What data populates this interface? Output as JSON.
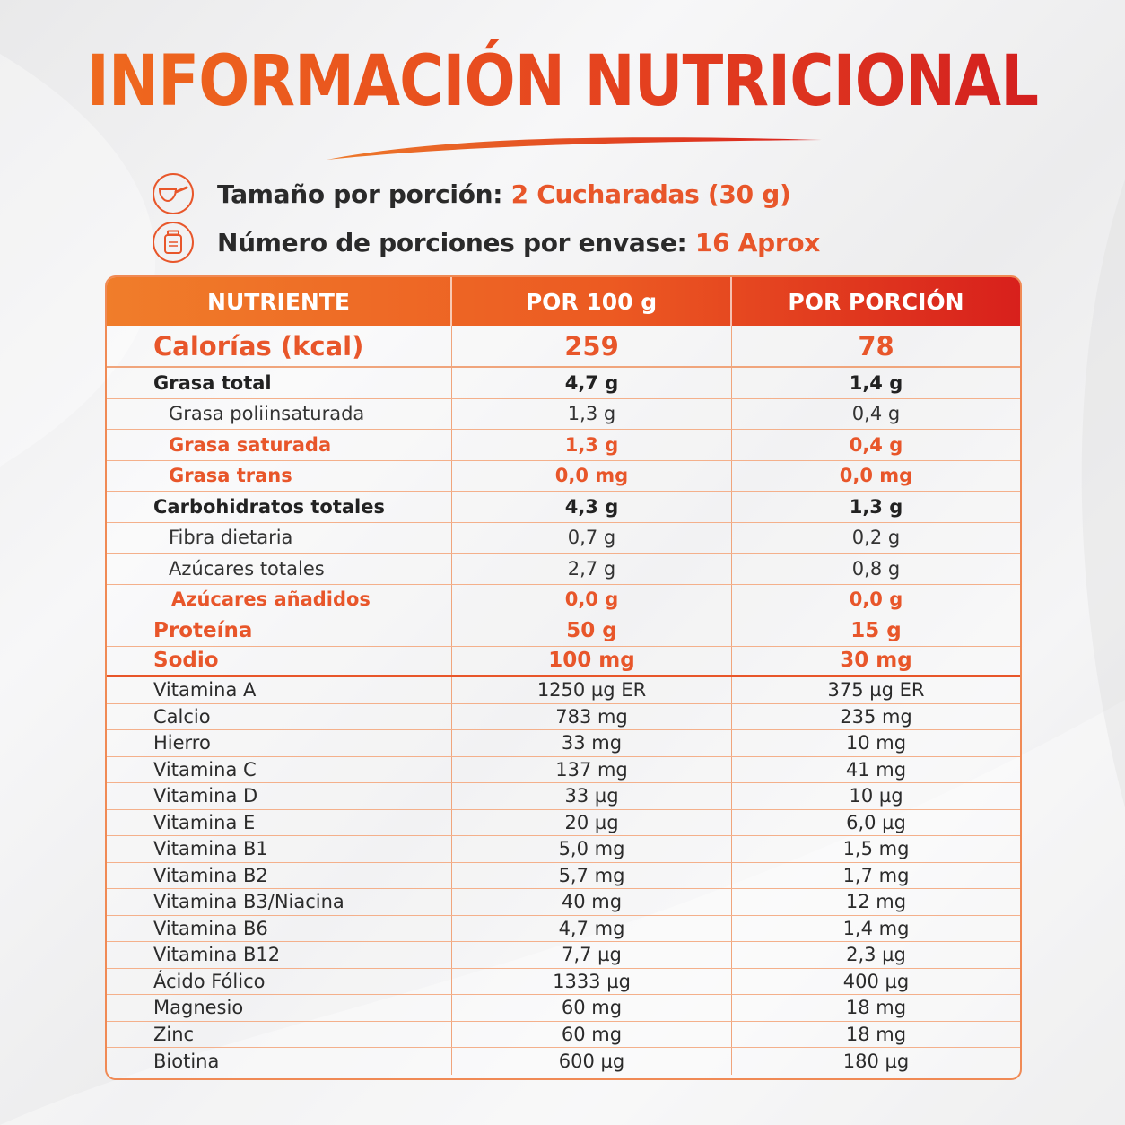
{
  "title": "INFORMACIÓN NUTRICIONAL",
  "serving": {
    "size_label": "Tamaño por porción:",
    "size_value": "2 Cucharadas (30 g)",
    "count_label": "Número de porciones por envase:",
    "count_value": "16 Aprox",
    "accent_color": "#e8562a"
  },
  "icons": {
    "scoop": "scoop-icon",
    "jar": "jar-icon"
  },
  "table": {
    "headers": [
      "NUTRIENTE",
      "POR 100 g",
      "POR PORCIÓN"
    ],
    "calories": {
      "label": "Calorías (kcal)",
      "per100": "259",
      "perServing": "78"
    },
    "main_rows": [
      {
        "label": "Grasa total",
        "per100": "4,7 g",
        "perServing": "1,4 g"
      },
      {
        "label": "Grasa poliinsaturada",
        "per100": "1,3 g",
        "perServing": "0,4 g"
      },
      {
        "label": "Grasa saturada",
        "per100": "1,3 g",
        "perServing": "0,4 g"
      },
      {
        "label": "Grasa trans",
        "per100": "0,0 mg",
        "perServing": "0,0 mg"
      },
      {
        "label": "Carbohidratos totales",
        "per100": "4,3 g",
        "perServing": "1,3 g"
      },
      {
        "label": "Fibra dietaria",
        "per100": "0,7 g",
        "perServing": "0,2 g"
      },
      {
        "label": "Azúcares totales",
        "per100": "2,7 g",
        "perServing": "0,8 g"
      },
      {
        "label": "Azúcares añadidos",
        "per100": "0,0 g",
        "perServing": "0,0 g"
      },
      {
        "label": "Proteína",
        "per100": "50 g",
        "perServing": "15 g"
      },
      {
        "label": "Sodio",
        "per100": "100 mg",
        "perServing": "30 mg"
      }
    ],
    "vitamins": [
      {
        "label": "Vitamina A",
        "per100": "1250 µg ER",
        "perServing": "375 µg ER"
      },
      {
        "label": "Calcio",
        "per100": "783 mg",
        "perServing": "235 mg"
      },
      {
        "label": "Hierro",
        "per100": "33 mg",
        "perServing": "10 mg"
      },
      {
        "label": "Vitamina C",
        "per100": "137 mg",
        "perServing": "41 mg"
      },
      {
        "label": "Vitamina D",
        "per100": "33 µg",
        "perServing": "10 µg"
      },
      {
        "label": "Vitamina E",
        "per100": "20 µg",
        "perServing": "6,0 µg"
      },
      {
        "label": "Vitamina B1",
        "per100": "5,0 mg",
        "perServing": "1,5 mg"
      },
      {
        "label": "Vitamina B2",
        "per100": "5,7 mg",
        "perServing": "1,7 mg"
      },
      {
        "label": "Vitamina B3/Niacina",
        "per100": "40 mg",
        "perServing": "12 mg"
      },
      {
        "label": "Vitamina B6",
        "per100": "4,7 mg",
        "perServing": "1,4 mg"
      },
      {
        "label": "Vitamina B12",
        "per100": "7,7 µg",
        "perServing": "2,3 µg"
      },
      {
        "label": "Ácido Fólico",
        "per100": "1333 µg",
        "perServing": "400 µg"
      },
      {
        "label": "Magnesio",
        "per100": "60 mg",
        "perServing": "18 mg"
      },
      {
        "label": "Zinc",
        "per100": "60 mg",
        "perServing": "18 mg"
      },
      {
        "label": "Biotina",
        "per100": "600 µg",
        "perServing": "180 µg"
      }
    ]
  }
}
